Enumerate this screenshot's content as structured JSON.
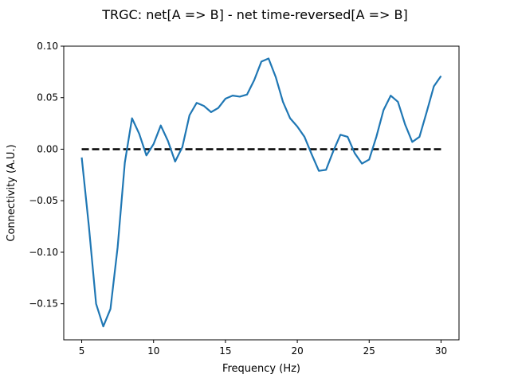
{
  "chart_data": {
    "type": "line",
    "title": "TRGC: net[A => B] - net time-reversed[A => B]",
    "xlabel": "Frequency (Hz)",
    "ylabel": "Connectivity (A.U.)",
    "xlim": [
      3.75,
      31.25
    ],
    "ylim": [
      -0.185,
      0.1
    ],
    "xticks": [
      5,
      10,
      15,
      20,
      25,
      30
    ],
    "xtick_labels": [
      "5",
      "10",
      "15",
      "20",
      "25",
      "30"
    ],
    "yticks": [
      -0.15,
      -0.1,
      -0.05,
      0.0,
      0.05,
      0.1
    ],
    "ytick_labels": [
      "−0.15",
      "−0.10",
      "−0.05",
      "0.00",
      "0.05",
      "0.10"
    ],
    "grid": false,
    "series": [
      {
        "color": "#1f77b4",
        "style": "solid",
        "x": [
          5.0,
          5.5,
          6.0,
          6.5,
          7.0,
          7.5,
          8.0,
          8.5,
          9.0,
          9.5,
          10.0,
          10.5,
          11.0,
          11.5,
          12.0,
          12.5,
          13.0,
          13.5,
          14.0,
          14.5,
          15.0,
          15.5,
          16.0,
          16.5,
          17.0,
          17.5,
          18.0,
          18.5,
          19.0,
          19.5,
          20.0,
          20.5,
          21.0,
          21.5,
          22.0,
          22.5,
          23.0,
          23.5,
          24.0,
          24.5,
          25.0,
          25.5,
          26.0,
          26.5,
          27.0,
          27.5,
          28.0,
          28.5,
          29.0,
          29.5,
          30.0
        ],
        "y": [
          -0.008,
          -0.075,
          -0.15,
          -0.172,
          -0.155,
          -0.095,
          -0.013,
          0.03,
          0.015,
          -0.006,
          0.005,
          0.023,
          0.008,
          -0.012,
          0.002,
          0.033,
          0.045,
          0.042,
          0.036,
          0.04,
          0.049,
          0.052,
          0.051,
          0.053,
          0.067,
          0.085,
          0.088,
          0.07,
          0.046,
          0.03,
          0.022,
          0.012,
          -0.005,
          -0.021,
          -0.02,
          -0.002,
          0.014,
          0.012,
          -0.004,
          -0.014,
          -0.01,
          0.012,
          0.038,
          0.052,
          0.046,
          0.024,
          0.007,
          0.012,
          0.036,
          0.061,
          0.071
        ]
      },
      {
        "color": "#000000",
        "style": "dashed",
        "x": [
          5.0,
          30.0
        ],
        "y": [
          0.0,
          0.0
        ]
      }
    ]
  }
}
